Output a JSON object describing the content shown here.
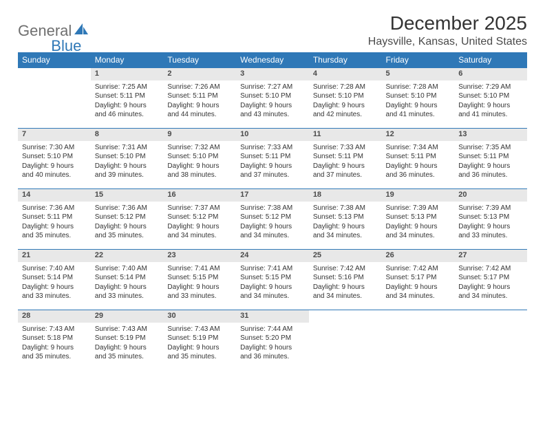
{
  "logo": {
    "text1": "General",
    "text2": "Blue"
  },
  "title": "December 2025",
  "location": "Haysville, Kansas, United States",
  "colors": {
    "header_bg": "#2f78b7",
    "header_text": "#ffffff",
    "daynum_bg": "#e8e8e8",
    "border": "#2f78b7",
    "body_text": "#333333",
    "logo_gray": "#6f6f6f",
    "logo_blue": "#2f78b7"
  },
  "day_headers": [
    "Sunday",
    "Monday",
    "Tuesday",
    "Wednesday",
    "Thursday",
    "Friday",
    "Saturday"
  ],
  "weeks": [
    {
      "nums": [
        "",
        "1",
        "2",
        "3",
        "4",
        "5",
        "6"
      ],
      "cells": [
        null,
        {
          "sunrise": "Sunrise: 7:25 AM",
          "sunset": "Sunset: 5:11 PM",
          "day1": "Daylight: 9 hours",
          "day2": "and 46 minutes."
        },
        {
          "sunrise": "Sunrise: 7:26 AM",
          "sunset": "Sunset: 5:11 PM",
          "day1": "Daylight: 9 hours",
          "day2": "and 44 minutes."
        },
        {
          "sunrise": "Sunrise: 7:27 AM",
          "sunset": "Sunset: 5:10 PM",
          "day1": "Daylight: 9 hours",
          "day2": "and 43 minutes."
        },
        {
          "sunrise": "Sunrise: 7:28 AM",
          "sunset": "Sunset: 5:10 PM",
          "day1": "Daylight: 9 hours",
          "day2": "and 42 minutes."
        },
        {
          "sunrise": "Sunrise: 7:28 AM",
          "sunset": "Sunset: 5:10 PM",
          "day1": "Daylight: 9 hours",
          "day2": "and 41 minutes."
        },
        {
          "sunrise": "Sunrise: 7:29 AM",
          "sunset": "Sunset: 5:10 PM",
          "day1": "Daylight: 9 hours",
          "day2": "and 41 minutes."
        }
      ]
    },
    {
      "nums": [
        "7",
        "8",
        "9",
        "10",
        "11",
        "12",
        "13"
      ],
      "cells": [
        {
          "sunrise": "Sunrise: 7:30 AM",
          "sunset": "Sunset: 5:10 PM",
          "day1": "Daylight: 9 hours",
          "day2": "and 40 minutes."
        },
        {
          "sunrise": "Sunrise: 7:31 AM",
          "sunset": "Sunset: 5:10 PM",
          "day1": "Daylight: 9 hours",
          "day2": "and 39 minutes."
        },
        {
          "sunrise": "Sunrise: 7:32 AM",
          "sunset": "Sunset: 5:10 PM",
          "day1": "Daylight: 9 hours",
          "day2": "and 38 minutes."
        },
        {
          "sunrise": "Sunrise: 7:33 AM",
          "sunset": "Sunset: 5:11 PM",
          "day1": "Daylight: 9 hours",
          "day2": "and 37 minutes."
        },
        {
          "sunrise": "Sunrise: 7:33 AM",
          "sunset": "Sunset: 5:11 PM",
          "day1": "Daylight: 9 hours",
          "day2": "and 37 minutes."
        },
        {
          "sunrise": "Sunrise: 7:34 AM",
          "sunset": "Sunset: 5:11 PM",
          "day1": "Daylight: 9 hours",
          "day2": "and 36 minutes."
        },
        {
          "sunrise": "Sunrise: 7:35 AM",
          "sunset": "Sunset: 5:11 PM",
          "day1": "Daylight: 9 hours",
          "day2": "and 36 minutes."
        }
      ]
    },
    {
      "nums": [
        "14",
        "15",
        "16",
        "17",
        "18",
        "19",
        "20"
      ],
      "cells": [
        {
          "sunrise": "Sunrise: 7:36 AM",
          "sunset": "Sunset: 5:11 PM",
          "day1": "Daylight: 9 hours",
          "day2": "and 35 minutes."
        },
        {
          "sunrise": "Sunrise: 7:36 AM",
          "sunset": "Sunset: 5:12 PM",
          "day1": "Daylight: 9 hours",
          "day2": "and 35 minutes."
        },
        {
          "sunrise": "Sunrise: 7:37 AM",
          "sunset": "Sunset: 5:12 PM",
          "day1": "Daylight: 9 hours",
          "day2": "and 34 minutes."
        },
        {
          "sunrise": "Sunrise: 7:38 AM",
          "sunset": "Sunset: 5:12 PM",
          "day1": "Daylight: 9 hours",
          "day2": "and 34 minutes."
        },
        {
          "sunrise": "Sunrise: 7:38 AM",
          "sunset": "Sunset: 5:13 PM",
          "day1": "Daylight: 9 hours",
          "day2": "and 34 minutes."
        },
        {
          "sunrise": "Sunrise: 7:39 AM",
          "sunset": "Sunset: 5:13 PM",
          "day1": "Daylight: 9 hours",
          "day2": "and 34 minutes."
        },
        {
          "sunrise": "Sunrise: 7:39 AM",
          "sunset": "Sunset: 5:13 PM",
          "day1": "Daylight: 9 hours",
          "day2": "and 33 minutes."
        }
      ]
    },
    {
      "nums": [
        "21",
        "22",
        "23",
        "24",
        "25",
        "26",
        "27"
      ],
      "cells": [
        {
          "sunrise": "Sunrise: 7:40 AM",
          "sunset": "Sunset: 5:14 PM",
          "day1": "Daylight: 9 hours",
          "day2": "and 33 minutes."
        },
        {
          "sunrise": "Sunrise: 7:40 AM",
          "sunset": "Sunset: 5:14 PM",
          "day1": "Daylight: 9 hours",
          "day2": "and 33 minutes."
        },
        {
          "sunrise": "Sunrise: 7:41 AM",
          "sunset": "Sunset: 5:15 PM",
          "day1": "Daylight: 9 hours",
          "day2": "and 33 minutes."
        },
        {
          "sunrise": "Sunrise: 7:41 AM",
          "sunset": "Sunset: 5:15 PM",
          "day1": "Daylight: 9 hours",
          "day2": "and 34 minutes."
        },
        {
          "sunrise": "Sunrise: 7:42 AM",
          "sunset": "Sunset: 5:16 PM",
          "day1": "Daylight: 9 hours",
          "day2": "and 34 minutes."
        },
        {
          "sunrise": "Sunrise: 7:42 AM",
          "sunset": "Sunset: 5:17 PM",
          "day1": "Daylight: 9 hours",
          "day2": "and 34 minutes."
        },
        {
          "sunrise": "Sunrise: 7:42 AM",
          "sunset": "Sunset: 5:17 PM",
          "day1": "Daylight: 9 hours",
          "day2": "and 34 minutes."
        }
      ]
    },
    {
      "nums": [
        "28",
        "29",
        "30",
        "31",
        "",
        "",
        ""
      ],
      "cells": [
        {
          "sunrise": "Sunrise: 7:43 AM",
          "sunset": "Sunset: 5:18 PM",
          "day1": "Daylight: 9 hours",
          "day2": "and 35 minutes."
        },
        {
          "sunrise": "Sunrise: 7:43 AM",
          "sunset": "Sunset: 5:19 PM",
          "day1": "Daylight: 9 hours",
          "day2": "and 35 minutes."
        },
        {
          "sunrise": "Sunrise: 7:43 AM",
          "sunset": "Sunset: 5:19 PM",
          "day1": "Daylight: 9 hours",
          "day2": "and 35 minutes."
        },
        {
          "sunrise": "Sunrise: 7:44 AM",
          "sunset": "Sunset: 5:20 PM",
          "day1": "Daylight: 9 hours",
          "day2": "and 36 minutes."
        },
        null,
        null,
        null
      ]
    }
  ]
}
